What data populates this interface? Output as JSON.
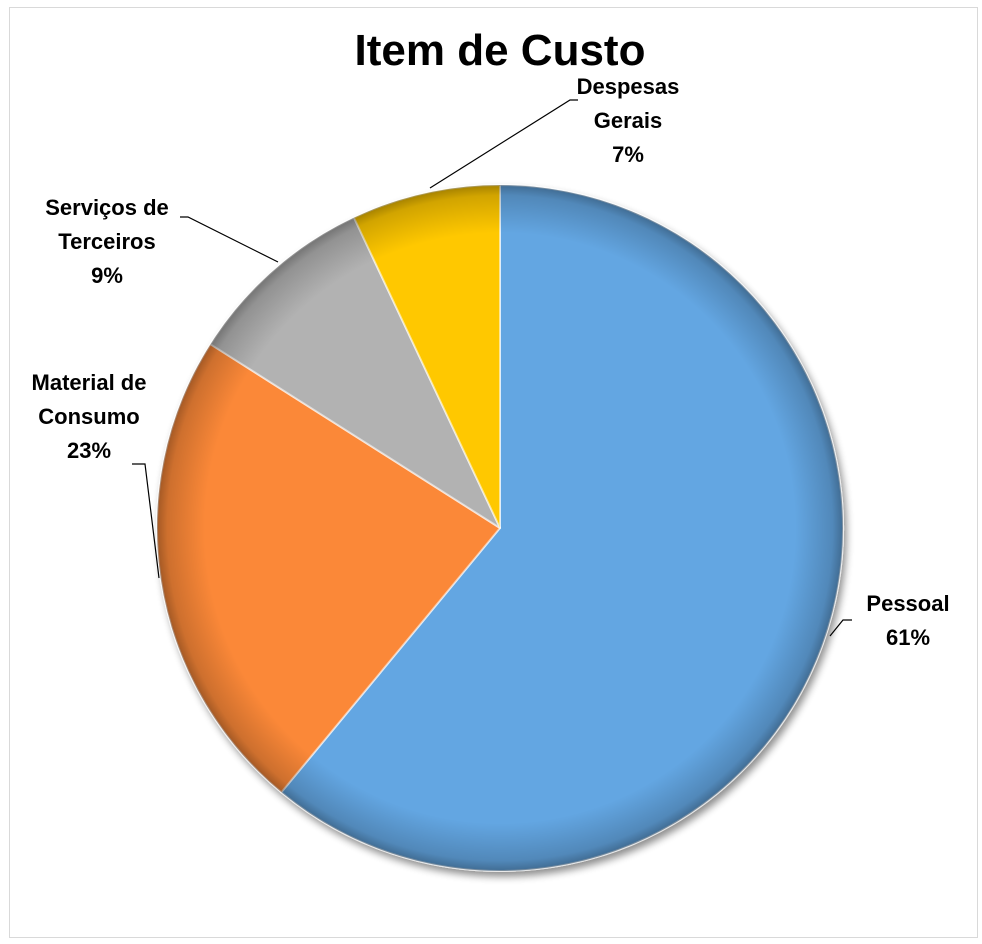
{
  "chart_data": {
    "type": "pie",
    "title": "Item de Custo",
    "slices": [
      {
        "name_lines": [
          "Pessoal"
        ],
        "percent_label": "61%",
        "value": 61,
        "color": "#63a6e2"
      },
      {
        "name_lines": [
          "Material de",
          "Consumo"
        ],
        "percent_label": "23%",
        "value": 23,
        "color": "#fb8838"
      },
      {
        "name_lines": [
          "Serviços de",
          "Terceiros"
        ],
        "percent_label": "9%",
        "value": 9,
        "color": "#b2b2b2"
      },
      {
        "name_lines": [
          "Despesas",
          "Gerais"
        ],
        "percent_label": "7%",
        "value": 7,
        "color": "#ffc800"
      }
    ],
    "start_angle": "12 o'clock",
    "direction": "clockwise",
    "legend": "none",
    "data_labels": "outside with leader lines"
  }
}
